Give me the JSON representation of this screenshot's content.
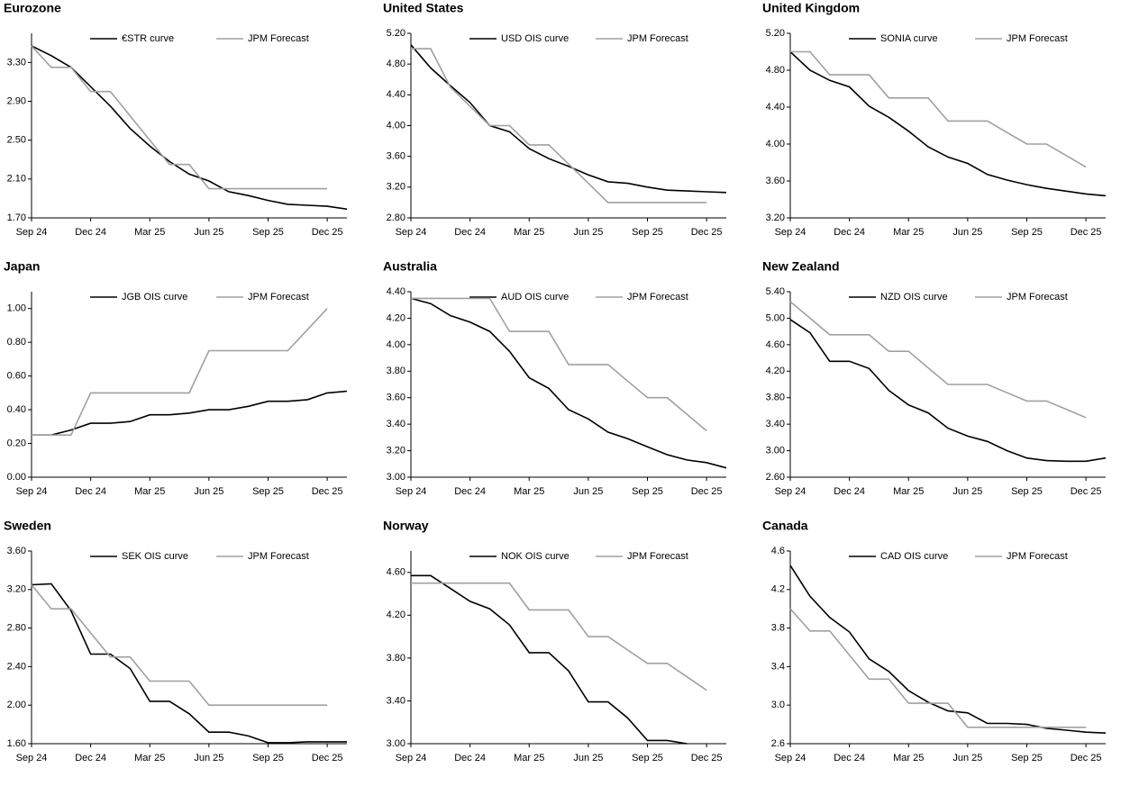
{
  "chart_data": [
    {
      "type": "line",
      "title": "Eurozone",
      "x": [
        0,
        1,
        2,
        3,
        4,
        5,
        6,
        7,
        8,
        9,
        10,
        11,
        12,
        13,
        14,
        15,
        16
      ],
      "xlim": [
        0,
        16
      ],
      "xticks": [
        {
          "value": 0,
          "label": "Sep 24"
        },
        {
          "value": 3,
          "label": "Dec 24"
        },
        {
          "value": 6,
          "label": "Mar 25"
        },
        {
          "value": 9,
          "label": "Jun 25"
        },
        {
          "value": 12,
          "label": "Sep 25"
        },
        {
          "value": 15,
          "label": "Dec 25"
        }
      ],
      "ylim": [
        1.7,
        3.6
      ],
      "yticks": [
        {
          "value": 1.7,
          "label": "1.70"
        },
        {
          "value": 2.1,
          "label": "2.10"
        },
        {
          "value": 2.5,
          "label": "2.50"
        },
        {
          "value": 2.9,
          "label": "2.90"
        },
        {
          "value": 3.3,
          "label": "3.30"
        }
      ],
      "series": [
        {
          "name": "€STR curve",
          "color": "#000000",
          "values": [
            3.47,
            3.37,
            3.25,
            3.05,
            2.85,
            2.62,
            2.44,
            2.28,
            2.15,
            2.08,
            1.97,
            1.93,
            1.88,
            1.84,
            1.83,
            1.82,
            1.79
          ]
        },
        {
          "name": "JPM Forecast",
          "color": "#a0a0a0",
          "values": [
            3.47,
            3.25,
            3.25,
            3.0,
            3.0,
            2.75,
            2.5,
            2.25,
            2.25,
            2.0,
            2.0,
            2.0,
            2.0,
            2.0,
            2.0,
            2.0,
            null
          ]
        }
      ]
    },
    {
      "type": "line",
      "title": "United States",
      "x": [
        0,
        1,
        2,
        3,
        4,
        5,
        6,
        7,
        8,
        9,
        10,
        11,
        12,
        13,
        14,
        15,
        16
      ],
      "xlim": [
        0,
        16
      ],
      "xticks": [
        {
          "value": 0,
          "label": "Sep 24"
        },
        {
          "value": 3,
          "label": "Dec 24"
        },
        {
          "value": 6,
          "label": "Mar 25"
        },
        {
          "value": 9,
          "label": "Jun 25"
        },
        {
          "value": 12,
          "label": "Sep 25"
        },
        {
          "value": 15,
          "label": "Dec 25"
        }
      ],
      "ylim": [
        2.8,
        5.2
      ],
      "yticks": [
        {
          "value": 2.8,
          "label": "2.80"
        },
        {
          "value": 3.2,
          "label": "3.20"
        },
        {
          "value": 3.6,
          "label": "3.60"
        },
        {
          "value": 4.0,
          "label": "4.00"
        },
        {
          "value": 4.4,
          "label": "4.40"
        },
        {
          "value": 4.8,
          "label": "4.80"
        },
        {
          "value": 5.2,
          "label": "5.20"
        }
      ],
      "series": [
        {
          "name": "USD OIS curve",
          "color": "#000000",
          "values": [
            5.05,
            4.75,
            4.52,
            4.3,
            4.0,
            3.92,
            3.7,
            3.57,
            3.47,
            3.36,
            3.27,
            3.25,
            3.2,
            3.16,
            3.15,
            3.14,
            3.13
          ]
        },
        {
          "name": "JPM Forecast",
          "color": "#a0a0a0",
          "values": [
            5.0,
            5.0,
            4.5,
            4.25,
            4.0,
            4.0,
            3.75,
            3.75,
            3.5,
            3.25,
            3.0,
            3.0,
            3.0,
            3.0,
            3.0,
            3.0,
            null
          ]
        }
      ]
    },
    {
      "type": "line",
      "title": "United Kingdom",
      "x": [
        0,
        1,
        2,
        3,
        4,
        5,
        6,
        7,
        8,
        9,
        10,
        11,
        12,
        13,
        14,
        15,
        16
      ],
      "xlim": [
        0,
        16
      ],
      "xticks": [
        {
          "value": 0,
          "label": "Sep 24"
        },
        {
          "value": 3,
          "label": "Dec 24"
        },
        {
          "value": 6,
          "label": "Mar 25"
        },
        {
          "value": 9,
          "label": "Jun 25"
        },
        {
          "value": 12,
          "label": "Sep 25"
        },
        {
          "value": 15,
          "label": "Dec 25"
        }
      ],
      "ylim": [
        3.2,
        5.2
      ],
      "yticks": [
        {
          "value": 3.2,
          "label": "3.20"
        },
        {
          "value": 3.6,
          "label": "3.60"
        },
        {
          "value": 4.0,
          "label": "4.00"
        },
        {
          "value": 4.4,
          "label": "4.40"
        },
        {
          "value": 4.8,
          "label": "4.80"
        },
        {
          "value": 5.2,
          "label": "5.20"
        }
      ],
      "series": [
        {
          "name": "SONIA curve",
          "color": "#000000",
          "values": [
            5.0,
            4.8,
            4.69,
            4.62,
            4.41,
            4.29,
            4.14,
            3.97,
            3.86,
            3.79,
            3.67,
            3.61,
            3.56,
            3.52,
            3.49,
            3.46,
            3.44
          ]
        },
        {
          "name": "JPM Forecast",
          "color": "#a0a0a0",
          "values": [
            5.0,
            5.0,
            4.75,
            4.75,
            4.75,
            4.5,
            4.5,
            4.5,
            4.25,
            4.25,
            4.25,
            4.125,
            4.0,
            4.0,
            3.875,
            3.75,
            null
          ]
        }
      ]
    },
    {
      "type": "line",
      "title": "Japan",
      "x": [
        0,
        1,
        2,
        3,
        4,
        5,
        6,
        7,
        8,
        9,
        10,
        11,
        12,
        13,
        14,
        15,
        16
      ],
      "xlim": [
        0,
        16
      ],
      "xticks": [
        {
          "value": 0,
          "label": "Sep 24"
        },
        {
          "value": 3,
          "label": "Dec 24"
        },
        {
          "value": 6,
          "label": "Mar 25"
        },
        {
          "value": 9,
          "label": "Jun 25"
        },
        {
          "value": 12,
          "label": "Sep 25"
        },
        {
          "value": 15,
          "label": "Dec 25"
        }
      ],
      "ylim": [
        0,
        1.1
      ],
      "yticks": [
        {
          "value": 0,
          "label": "0.00"
        },
        {
          "value": 0.2,
          "label": "0.20"
        },
        {
          "value": 0.4,
          "label": "0.40"
        },
        {
          "value": 0.6,
          "label": "0.60"
        },
        {
          "value": 0.8,
          "label": "0.80"
        },
        {
          "value": 1.0,
          "label": "1.00"
        }
      ],
      "series": [
        {
          "name": "JGB OIS curve",
          "color": "#000000",
          "values": [
            0.25,
            0.25,
            0.28,
            0.32,
            0.32,
            0.33,
            0.37,
            0.37,
            0.38,
            0.4,
            0.4,
            0.42,
            0.45,
            0.45,
            0.46,
            0.5,
            0.51
          ]
        },
        {
          "name": "JPM Forecast",
          "color": "#a0a0a0",
          "values": [
            0.25,
            0.25,
            0.25,
            0.5,
            0.5,
            0.5,
            0.5,
            0.5,
            0.5,
            0.75,
            0.75,
            0.75,
            0.75,
            0.75,
            0.875,
            1.0,
            null
          ]
        }
      ]
    },
    {
      "type": "line",
      "title": "Australia",
      "x": [
        0,
        1,
        2,
        3,
        4,
        5,
        6,
        7,
        8,
        9,
        10,
        11,
        12,
        13,
        14,
        15,
        16
      ],
      "xlim": [
        0,
        16
      ],
      "xticks": [
        {
          "value": 0,
          "label": "Sep 24"
        },
        {
          "value": 3,
          "label": "Dec 24"
        },
        {
          "value": 6,
          "label": "Mar 25"
        },
        {
          "value": 9,
          "label": "Jun 25"
        },
        {
          "value": 12,
          "label": "Sep 25"
        },
        {
          "value": 15,
          "label": "Dec 25"
        }
      ],
      "ylim": [
        3.0,
        4.4
      ],
      "yticks": [
        {
          "value": 3.0,
          "label": "3.00"
        },
        {
          "value": 3.2,
          "label": "3.20"
        },
        {
          "value": 3.4,
          "label": "3.40"
        },
        {
          "value": 3.6,
          "label": "3.60"
        },
        {
          "value": 3.8,
          "label": "3.80"
        },
        {
          "value": 4.0,
          "label": "4.00"
        },
        {
          "value": 4.2,
          "label": "4.20"
        },
        {
          "value": 4.4,
          "label": "4.40"
        }
      ],
      "series": [
        {
          "name": "AUD OIS curve",
          "color": "#000000",
          "values": [
            4.35,
            4.31,
            4.22,
            4.17,
            4.1,
            3.95,
            3.75,
            3.67,
            3.51,
            3.44,
            3.34,
            3.29,
            3.23,
            3.17,
            3.13,
            3.11,
            3.07
          ]
        },
        {
          "name": "JPM Forecast",
          "color": "#a0a0a0",
          "values": [
            4.35,
            4.35,
            4.35,
            4.35,
            4.35,
            4.1,
            4.1,
            4.1,
            3.85,
            3.85,
            3.85,
            3.725,
            3.6,
            3.6,
            3.475,
            3.35,
            null
          ]
        }
      ]
    },
    {
      "type": "line",
      "title": "New Zealand",
      "x": [
        0,
        1,
        2,
        3,
        4,
        5,
        6,
        7,
        8,
        9,
        10,
        11,
        12,
        13,
        14,
        15,
        16
      ],
      "xlim": [
        0,
        16
      ],
      "xticks": [
        {
          "value": 0,
          "label": "Sep 24"
        },
        {
          "value": 3,
          "label": "Dec 24"
        },
        {
          "value": 6,
          "label": "Mar 25"
        },
        {
          "value": 9,
          "label": "Jun 25"
        },
        {
          "value": 12,
          "label": "Sep 25"
        },
        {
          "value": 15,
          "label": "Dec 25"
        }
      ],
      "ylim": [
        2.6,
        5.4
      ],
      "yticks": [
        {
          "value": 2.6,
          "label": "2.60"
        },
        {
          "value": 3.0,
          "label": "3.00"
        },
        {
          "value": 3.4,
          "label": "3.40"
        },
        {
          "value": 3.8,
          "label": "3.80"
        },
        {
          "value": 4.2,
          "label": "4.20"
        },
        {
          "value": 4.6,
          "label": "4.60"
        },
        {
          "value": 5.0,
          "label": "5.00"
        },
        {
          "value": 5.4,
          "label": "5.40"
        }
      ],
      "series": [
        {
          "name": "NZD OIS curve",
          "color": "#000000",
          "values": [
            4.98,
            4.78,
            4.35,
            4.35,
            4.24,
            3.91,
            3.69,
            3.57,
            3.34,
            3.22,
            3.14,
            3.0,
            2.89,
            2.85,
            2.84,
            2.84,
            2.89
          ]
        },
        {
          "name": "JPM Forecast",
          "color": "#a0a0a0",
          "values": [
            5.25,
            5.0,
            4.75,
            4.75,
            4.75,
            4.5,
            4.5,
            4.25,
            4.0,
            4.0,
            4.0,
            3.875,
            3.75,
            3.75,
            3.625,
            3.5,
            null
          ]
        }
      ]
    },
    {
      "type": "line",
      "title": "Sweden",
      "x": [
        0,
        1,
        2,
        3,
        4,
        5,
        6,
        7,
        8,
        9,
        10,
        11,
        12,
        13,
        14,
        15,
        16
      ],
      "xlim": [
        0,
        16
      ],
      "xticks": [
        {
          "value": 0,
          "label": "Sep 24"
        },
        {
          "value": 3,
          "label": "Dec 24"
        },
        {
          "value": 6,
          "label": "Mar 25"
        },
        {
          "value": 9,
          "label": "Jun 25"
        },
        {
          "value": 12,
          "label": "Sep 25"
        },
        {
          "value": 15,
          "label": "Dec 25"
        }
      ],
      "ylim": [
        1.6,
        3.6
      ],
      "yticks": [
        {
          "value": 1.6,
          "label": "1.60"
        },
        {
          "value": 2.0,
          "label": "2.00"
        },
        {
          "value": 2.4,
          "label": "2.40"
        },
        {
          "value": 2.8,
          "label": "2.80"
        },
        {
          "value": 3.2,
          "label": "3.20"
        },
        {
          "value": 3.6,
          "label": "3.60"
        }
      ],
      "series": [
        {
          "name": "SEK OIS curve",
          "color": "#000000",
          "values": [
            3.25,
            3.26,
            2.98,
            2.53,
            2.53,
            2.38,
            2.04,
            2.04,
            1.91,
            1.72,
            1.72,
            1.68,
            1.61,
            1.61,
            1.62,
            1.62,
            1.62
          ]
        },
        {
          "name": "JPM Forecast",
          "color": "#a0a0a0",
          "values": [
            3.25,
            3.0,
            3.0,
            2.75,
            2.5,
            2.5,
            2.25,
            2.25,
            2.25,
            2.0,
            2.0,
            2.0,
            2.0,
            2.0,
            2.0,
            2.0,
            null
          ]
        }
      ]
    },
    {
      "type": "line",
      "title": "Norway",
      "x": [
        0,
        1,
        2,
        3,
        4,
        5,
        6,
        7,
        8,
        9,
        10,
        11,
        12,
        13,
        14,
        15,
        16
      ],
      "xlim": [
        0,
        16
      ],
      "xticks": [
        {
          "value": 0,
          "label": "Sep 24"
        },
        {
          "value": 3,
          "label": "Dec 24"
        },
        {
          "value": 6,
          "label": "Mar 25"
        },
        {
          "value": 9,
          "label": "Jun 25"
        },
        {
          "value": 12,
          "label": "Sep 25"
        },
        {
          "value": 15,
          "label": "Dec 25"
        }
      ],
      "ylim": [
        3.0,
        4.8
      ],
      "yticks": [
        {
          "value": 3.0,
          "label": "3.00"
        },
        {
          "value": 3.4,
          "label": "3.40"
        },
        {
          "value": 3.8,
          "label": "3.80"
        },
        {
          "value": 4.2,
          "label": "4.20"
        },
        {
          "value": 4.6,
          "label": "4.60"
        }
      ],
      "series": [
        {
          "name": "NOK OIS curve",
          "color": "#000000",
          "values": [
            4.57,
            4.57,
            4.45,
            4.33,
            4.26,
            4.11,
            3.85,
            3.85,
            3.68,
            3.39,
            3.39,
            3.24,
            3.03,
            3.03,
            3.0,
            null,
            null
          ]
        },
        {
          "name": "JPM Forecast",
          "color": "#a0a0a0",
          "values": [
            4.5,
            4.5,
            4.5,
            4.5,
            4.5,
            4.5,
            4.25,
            4.25,
            4.25,
            4.0,
            4.0,
            3.875,
            3.75,
            3.75,
            3.625,
            3.5,
            null
          ]
        }
      ]
    },
    {
      "type": "line",
      "title": "Canada",
      "x": [
        0,
        1,
        2,
        3,
        4,
        5,
        6,
        7,
        8,
        9,
        10,
        11,
        12,
        13,
        14,
        15,
        16
      ],
      "xlim": [
        0,
        16
      ],
      "xticks": [
        {
          "value": 0,
          "label": "Sep 24"
        },
        {
          "value": 3,
          "label": "Dec 24"
        },
        {
          "value": 6,
          "label": "Mar 25"
        },
        {
          "value": 9,
          "label": "Jun 25"
        },
        {
          "value": 12,
          "label": "Sep 25"
        },
        {
          "value": 15,
          "label": "Dec 25"
        }
      ],
      "ylim": [
        2.6,
        4.6
      ],
      "yticks": [
        2.6,
        {
          "value": 3.0,
          "label": "3.0"
        },
        3.4,
        3.8,
        4.2,
        4.6
      ],
      "series": [
        {
          "name": "CAD OIS curve",
          "color": "#000000",
          "values": [
            4.45,
            4.13,
            3.91,
            3.76,
            3.48,
            3.35,
            3.15,
            3.03,
            2.94,
            2.92,
            2.81,
            2.81,
            2.8,
            2.76,
            2.74,
            2.72,
            2.71
          ]
        },
        {
          "name": "JPM Forecast",
          "color": "#a0a0a0",
          "values": [
            4.0,
            3.77,
            3.77,
            3.52,
            3.27,
            3.27,
            3.02,
            3.02,
            3.02,
            2.77,
            2.77,
            2.77,
            2.77,
            2.77,
            2.77,
            2.77,
            null
          ]
        }
      ]
    }
  ]
}
